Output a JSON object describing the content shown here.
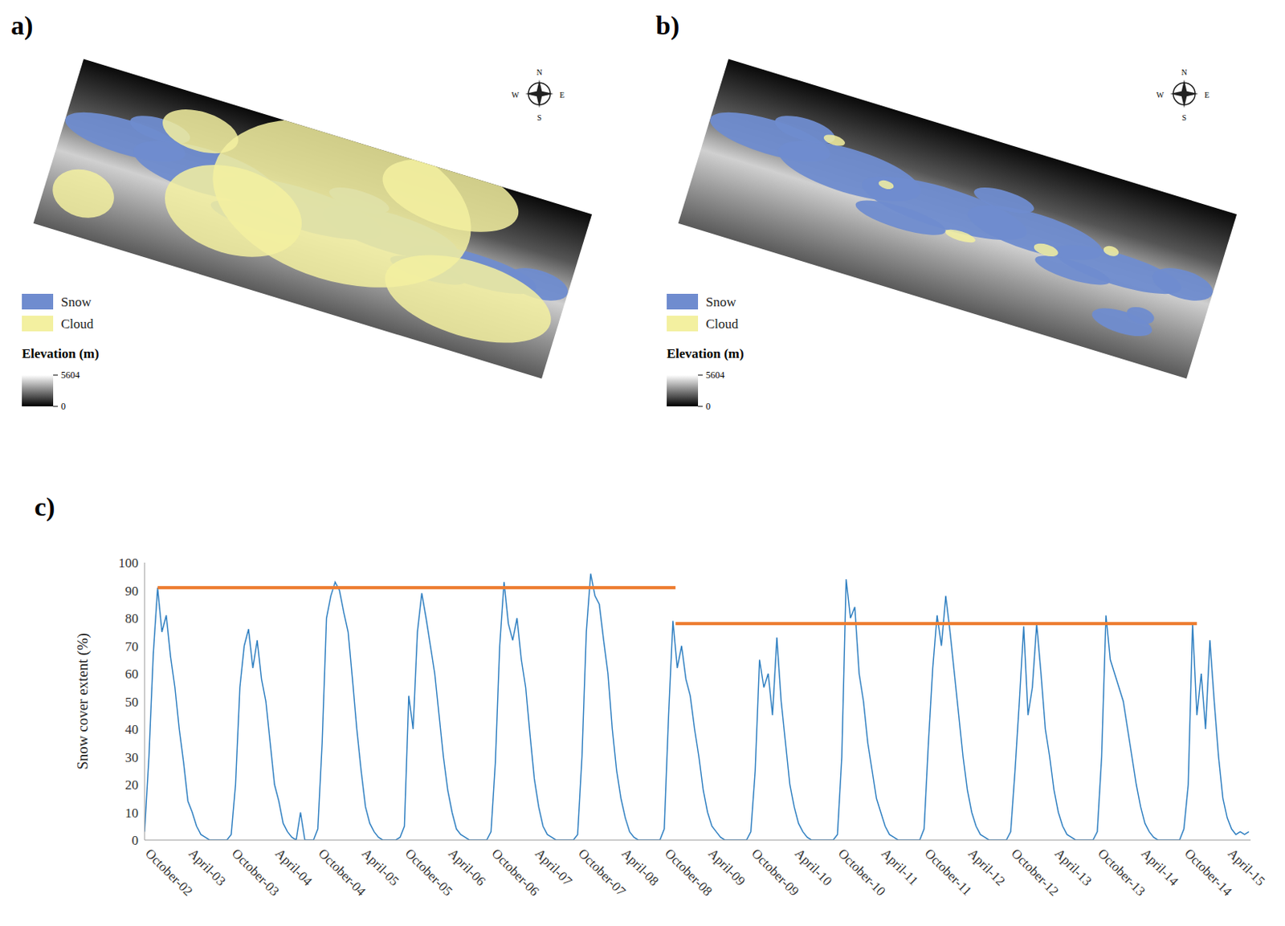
{
  "maps": [
    {
      "panel_label": "a)",
      "type": "map",
      "legend": [
        {
          "name": "Snow",
          "color": "#6f8ccf"
        },
        {
          "name": "Cloud",
          "color": "#f3f0a0"
        }
      ],
      "colorbar": {
        "title": "Elevation (m)",
        "range": [
          0,
          5604
        ],
        "ticks": [
          5604,
          0
        ]
      },
      "compass": [
        "N",
        "E",
        "S",
        "W"
      ]
    },
    {
      "panel_label": "b)",
      "type": "map",
      "legend": [
        {
          "name": "Snow",
          "color": "#6f8ccf"
        },
        {
          "name": "Cloud",
          "color": "#f3f0a0"
        }
      ],
      "colorbar": {
        "title": "Elevation (m)",
        "range": [
          0,
          5604
        ],
        "ticks": [
          5604,
          0
        ]
      },
      "compass": [
        "N",
        "E",
        "S",
        "W"
      ]
    }
  ],
  "chart_data": {
    "panel_label": "c)",
    "type": "line",
    "y_label": "Snow cover extent (%)",
    "color": "#2f7fc1",
    "ylim": [
      0,
      100
    ],
    "yticks": [
      0,
      10,
      20,
      30,
      40,
      50,
      60,
      70,
      80,
      90,
      100
    ],
    "xlim": [
      2002.75,
      2015.52
    ],
    "xticks": [
      {
        "value": 2002.75,
        "label": "October-02"
      },
      {
        "value": 2003.25,
        "label": "April-03"
      },
      {
        "value": 2003.75,
        "label": "October-03"
      },
      {
        "value": 2004.25,
        "label": "April-04"
      },
      {
        "value": 2004.75,
        "label": "October-04"
      },
      {
        "value": 2005.25,
        "label": "April-05"
      },
      {
        "value": 2005.75,
        "label": "October-05"
      },
      {
        "value": 2006.25,
        "label": "April-06"
      },
      {
        "value": 2006.75,
        "label": "October-06"
      },
      {
        "value": 2007.25,
        "label": "April-07"
      },
      {
        "value": 2007.75,
        "label": "October-07"
      },
      {
        "value": 2008.25,
        "label": "April-08"
      },
      {
        "value": 2008.75,
        "label": "October-08"
      },
      {
        "value": 2009.25,
        "label": "April-09"
      },
      {
        "value": 2009.75,
        "label": "October-09"
      },
      {
        "value": 2010.25,
        "label": "April-10"
      },
      {
        "value": 2010.75,
        "label": "October-10"
      },
      {
        "value": 2011.25,
        "label": "April-11"
      },
      {
        "value": 2011.75,
        "label": "October-11"
      },
      {
        "value": 2012.25,
        "label": "April-12"
      },
      {
        "value": 2012.75,
        "label": "October-12"
      },
      {
        "value": 2013.25,
        "label": "April-13"
      },
      {
        "value": 2013.75,
        "label": "October-13"
      },
      {
        "value": 2014.25,
        "label": "April-14"
      },
      {
        "value": 2014.75,
        "label": "October-14"
      },
      {
        "value": 2015.25,
        "label": "April-15"
      }
    ],
    "reference_lines": [
      {
        "y": 91,
        "x": [
          2002.9,
          2008.88
        ],
        "color": "#ed7d31"
      },
      {
        "y": 78,
        "x": [
          2008.88,
          2014.9
        ],
        "color": "#ed7d31"
      }
    ],
    "x": [
      2002.75,
      2002.8,
      2002.85,
      2002.9,
      2002.95,
      2003,
      2003.05,
      2003.1,
      2003.15,
      2003.2,
      2003.25,
      2003.3,
      2003.35,
      2003.4,
      2003.45,
      2003.5,
      2003.55,
      2003.6,
      2003.65,
      2003.7,
      2003.75,
      2003.8,
      2003.85,
      2003.9,
      2003.95,
      2004,
      2004.05,
      2004.1,
      2004.15,
      2004.2,
      2004.25,
      2004.3,
      2004.35,
      2004.4,
      2004.45,
      2004.5,
      2004.55,
      2004.6,
      2004.65,
      2004.7,
      2004.75,
      2004.8,
      2004.85,
      2004.9,
      2004.95,
      2005,
      2005.05,
      2005.1,
      2005.15,
      2005.2,
      2005.25,
      2005.3,
      2005.35,
      2005.4,
      2005.45,
      2005.5,
      2005.55,
      2005.6,
      2005.65,
      2005.7,
      2005.75,
      2005.8,
      2005.85,
      2005.9,
      2005.95,
      2006,
      2006.05,
      2006.1,
      2006.15,
      2006.2,
      2006.25,
      2006.3,
      2006.35,
      2006.4,
      2006.45,
      2006.5,
      2006.55,
      2006.6,
      2006.65,
      2006.7,
      2006.75,
      2006.8,
      2006.85,
      2006.9,
      2006.95,
      2007,
      2007.05,
      2007.1,
      2007.15,
      2007.2,
      2007.25,
      2007.3,
      2007.35,
      2007.4,
      2007.45,
      2007.5,
      2007.55,
      2007.6,
      2007.65,
      2007.7,
      2007.75,
      2007.8,
      2007.85,
      2007.9,
      2007.95,
      2008,
      2008.05,
      2008.1,
      2008.15,
      2008.2,
      2008.25,
      2008.3,
      2008.35,
      2008.4,
      2008.45,
      2008.5,
      2008.55,
      2008.6,
      2008.65,
      2008.7,
      2008.75,
      2008.8,
      2008.85,
      2008.9,
      2008.95,
      2009,
      2009.05,
      2009.1,
      2009.15,
      2009.2,
      2009.25,
      2009.3,
      2009.35,
      2009.4,
      2009.45,
      2009.5,
      2009.55,
      2009.6,
      2009.65,
      2009.7,
      2009.75,
      2009.8,
      2009.85,
      2009.9,
      2009.95,
      2010,
      2010.05,
      2010.1,
      2010.15,
      2010.2,
      2010.25,
      2010.3,
      2010.35,
      2010.4,
      2010.45,
      2010.5,
      2010.55,
      2010.6,
      2010.65,
      2010.7,
      2010.75,
      2010.8,
      2010.85,
      2010.9,
      2010.95,
      2011,
      2011.05,
      2011.1,
      2011.15,
      2011.2,
      2011.25,
      2011.3,
      2011.35,
      2011.4,
      2011.45,
      2011.5,
      2011.55,
      2011.6,
      2011.65,
      2011.7,
      2011.75,
      2011.8,
      2011.85,
      2011.9,
      2011.95,
      2012,
      2012.05,
      2012.1,
      2012.15,
      2012.2,
      2012.25,
      2012.3,
      2012.35,
      2012.4,
      2012.45,
      2012.5,
      2012.55,
      2012.6,
      2012.65,
      2012.7,
      2012.75,
      2012.8,
      2012.85,
      2012.9,
      2012.95,
      2013,
      2013.05,
      2013.1,
      2013.15,
      2013.2,
      2013.25,
      2013.3,
      2013.35,
      2013.4,
      2013.45,
      2013.5,
      2013.55,
      2013.6,
      2013.65,
      2013.7,
      2013.75,
      2013.8,
      2013.85,
      2013.9,
      2013.95,
      2014,
      2014.05,
      2014.1,
      2014.15,
      2014.2,
      2014.25,
      2014.3,
      2014.35,
      2014.4,
      2014.45,
      2014.5,
      2014.55,
      2014.6,
      2014.65,
      2014.7,
      2014.75,
      2014.8,
      2014.85,
      2014.9,
      2014.95,
      2015,
      2015.05,
      2015.1,
      2015.15,
      2015.2,
      2015.25,
      2015.3,
      2015.35,
      2015.4,
      2015.45,
      2015.5
    ],
    "values": [
      3,
      30,
      67,
      91,
      75,
      81,
      66,
      55,
      40,
      28,
      14,
      10,
      5,
      2,
      1,
      0,
      0,
      0,
      0,
      0,
      2,
      20,
      55,
      70,
      76,
      62,
      72,
      58,
      50,
      35,
      20,
      14,
      6,
      3,
      1,
      0,
      10,
      0,
      0,
      0,
      4,
      35,
      80,
      88,
      93,
      90,
      82,
      75,
      58,
      40,
      25,
      12,
      6,
      3,
      1,
      0,
      0,
      0,
      0,
      1,
      5,
      52,
      40,
      75,
      89,
      80,
      70,
      60,
      45,
      30,
      18,
      10,
      4,
      2,
      1,
      0,
      0,
      0,
      0,
      0,
      3,
      28,
      70,
      93,
      78,
      72,
      80,
      65,
      55,
      38,
      22,
      12,
      5,
      2,
      1,
      0,
      0,
      0,
      0,
      0,
      2,
      30,
      75,
      96,
      88,
      85,
      72,
      60,
      40,
      25,
      15,
      8,
      3,
      1,
      0,
      0,
      0,
      0,
      0,
      0,
      4,
      45,
      79,
      62,
      70,
      58,
      52,
      40,
      30,
      18,
      10,
      5,
      3,
      1,
      0,
      0,
      0,
      0,
      0,
      0,
      3,
      25,
      65,
      55,
      60,
      45,
      73,
      50,
      35,
      20,
      12,
      6,
      3,
      1,
      0,
      0,
      0,
      0,
      0,
      0,
      2,
      30,
      94,
      80,
      84,
      60,
      50,
      35,
      25,
      15,
      10,
      5,
      2,
      1,
      0,
      0,
      0,
      0,
      0,
      0,
      4,
      35,
      62,
      81,
      70,
      88,
      75,
      60,
      45,
      30,
      18,
      10,
      5,
      2,
      1,
      0,
      0,
      0,
      0,
      0,
      3,
      25,
      50,
      77,
      45,
      55,
      78,
      60,
      40,
      30,
      18,
      10,
      5,
      2,
      1,
      0,
      0,
      0,
      0,
      0,
      3,
      30,
      81,
      65,
      60,
      55,
      50,
      40,
      30,
      20,
      12,
      6,
      3,
      1,
      0,
      0,
      0,
      0,
      0,
      0,
      4,
      20,
      78,
      45,
      60,
      40,
      72,
      50,
      30,
      15,
      8,
      4,
      2,
      3,
      2,
      3
    ]
  }
}
